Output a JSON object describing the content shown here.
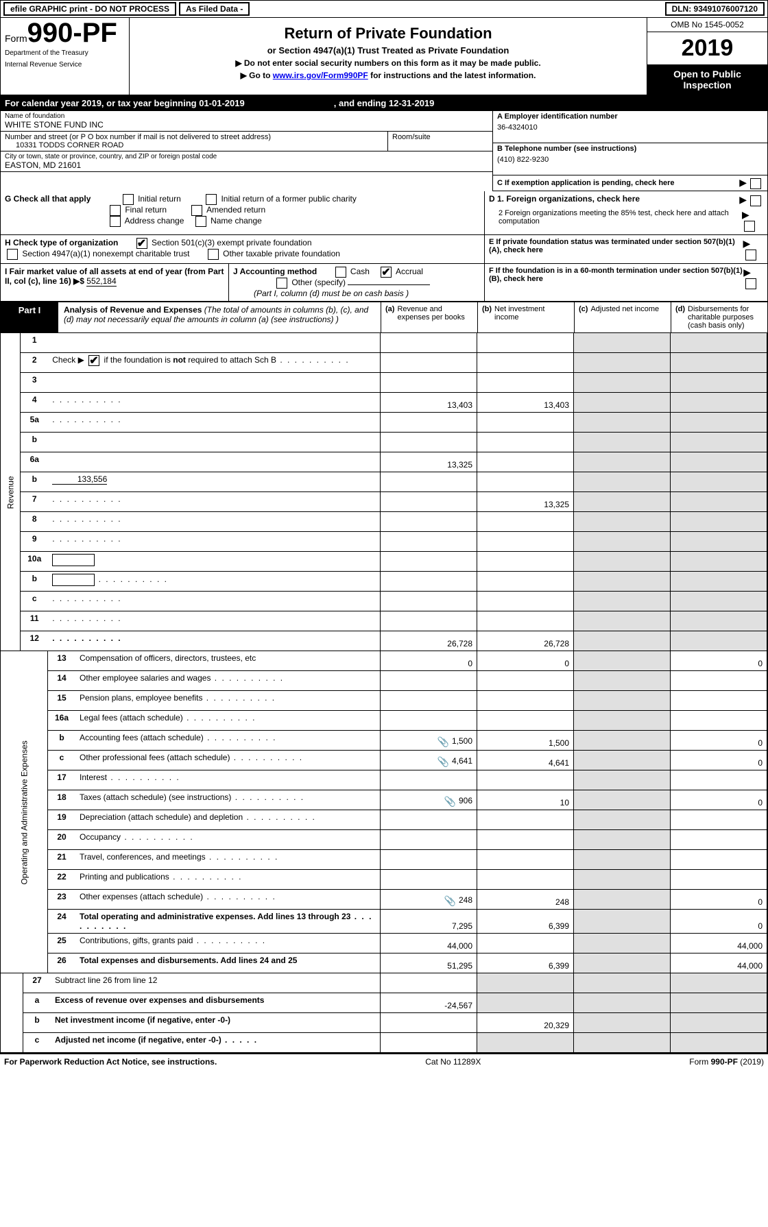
{
  "top_bar": {
    "efile": "efile GRAPHIC print - DO NOT PROCESS",
    "asfiled": "As Filed Data -",
    "dln": "DLN: 93491076007120"
  },
  "form_number": {
    "prefix": "Form",
    "number": "990-PF",
    "dept": "Department of the Treasury",
    "irs": "Internal Revenue Service"
  },
  "title": {
    "main": "Return of Private Foundation",
    "subtitle": "or Section 4947(a)(1) Trust Treated as Private Foundation",
    "line1": "▶  Do not enter social security numbers on this form as it may be made public.",
    "line2_pre": "▶  Go to ",
    "line2_link": "www.irs.gov/Form990PF",
    "line2_post": " for instructions and the latest information."
  },
  "right_header": {
    "omb": "OMB No 1545-0052",
    "year": "2019",
    "open": "Open to Public Inspection"
  },
  "calendar": {
    "begin_text": "For calendar year 2019, or tax year beginning 01-01-2019",
    "end_text": ", and ending 12-31-2019"
  },
  "foundation": {
    "name_label": "Name of foundation",
    "name": "WHITE STONE FUND INC",
    "address_label": "Number and street (or P O  box number if mail is not delivered to street address)",
    "room_label": "Room/suite",
    "address": "10331 TODDS CORNER ROAD",
    "city_label": "City or town, state or province, country, and ZIP or foreign postal code",
    "city": "EASTON, MD  21601"
  },
  "ein": {
    "label": "A Employer identification number",
    "value": "36-4324010"
  },
  "phone": {
    "label": "B Telephone number (see instructions)",
    "value": "(410) 822-9230"
  },
  "c_label": "C If exemption application is pending, check here",
  "d_labels": {
    "d1": "D 1. Foreign organizations, check here",
    "d2": "2 Foreign organizations meeting the 85% test, check here and attach computation"
  },
  "e_label": "E   If private foundation status was terminated under section 507(b)(1)(A), check here",
  "f_label": "F   If the foundation is in a 60-month termination under section 507(b)(1)(B), check here",
  "g": {
    "label": "G Check all that apply",
    "opts": [
      "Initial return",
      "Initial return of a former public charity",
      "Final return",
      "Amended return",
      "Address change",
      "Name change"
    ]
  },
  "h": {
    "label": "H Check type of organization",
    "opt1": "Section 501(c)(3) exempt private foundation",
    "opt2": "Section 4947(a)(1) nonexempt charitable trust",
    "opt3": "Other taxable private foundation"
  },
  "i": {
    "label": "I Fair market value of all assets at end of year (from Part II, col  (c), line 16) ▶$",
    "value": "552,184"
  },
  "j": {
    "label": "J Accounting method",
    "cash": "Cash",
    "accrual": "Accrual",
    "other": "Other (specify)",
    "note": "(Part I, column (d) must be on cash basis )"
  },
  "part1": {
    "label": "Part I",
    "title": "Analysis of Revenue and Expenses",
    "desc": "(The total of amounts in columns (b), (c), and (d) may not necessarily equal the amounts in column (a) (see instructions) )",
    "col_a": "Revenue and expenses per books",
    "col_b": "Net investment income",
    "col_c": "Adjusted net income",
    "col_d": "Disbursements for charitable purposes (cash basis only)"
  },
  "revenue_label": "Revenue",
  "expenses_label": "Operating and Administrative Expenses",
  "rows": [
    {
      "n": "1",
      "d": "",
      "a": "",
      "b": "",
      "c": ""
    },
    {
      "n": "2",
      "d": "",
      "a": "",
      "b": "",
      "c": "",
      "dots": true
    },
    {
      "n": "3",
      "d": "",
      "a": "",
      "b": "",
      "c": ""
    },
    {
      "n": "4",
      "d": "",
      "a": "13,403",
      "b": "13,403",
      "c": "",
      "dots": true
    },
    {
      "n": "5a",
      "d": "",
      "a": "",
      "b": "",
      "c": "",
      "dots": true
    },
    {
      "n": "b",
      "d": "",
      "a": "",
      "b": "",
      "c": "",
      "inline": true
    },
    {
      "n": "6a",
      "d": "",
      "a": "13,325",
      "b": "",
      "c": ""
    },
    {
      "n": "b",
      "d": "",
      "inline_val": "133,556",
      "a": "",
      "b": "",
      "c": ""
    },
    {
      "n": "7",
      "d": "",
      "a": "",
      "b": "13,325",
      "c": "",
      "dots": true
    },
    {
      "n": "8",
      "d": "",
      "a": "",
      "b": "",
      "c": "",
      "dots": true
    },
    {
      "n": "9",
      "d": "",
      "a": "",
      "b": "",
      "c": "",
      "dots": true
    },
    {
      "n": "10a",
      "d": "",
      "a": "",
      "b": "",
      "c": "",
      "box": true
    },
    {
      "n": "b",
      "d": "",
      "a": "",
      "b": "",
      "c": "",
      "box": true,
      "dots": true
    },
    {
      "n": "c",
      "d": "",
      "a": "",
      "b": "",
      "c": "",
      "dots": true
    },
    {
      "n": "11",
      "d": "",
      "a": "",
      "b": "",
      "c": "",
      "dots": true
    },
    {
      "n": "12",
      "d": "",
      "a": "26,728",
      "b": "26,728",
      "c": "",
      "bold": true,
      "dots": true
    }
  ],
  "exp_rows": [
    {
      "n": "13",
      "d": "Compensation of officers, directors, trustees, etc",
      "a": "0",
      "b": "0",
      "c": "",
      "dd": "0"
    },
    {
      "n": "14",
      "d": "Other employee salaries and wages",
      "a": "",
      "b": "",
      "c": "",
      "dd": "",
      "dots": true
    },
    {
      "n": "15",
      "d": "Pension plans, employee benefits",
      "a": "",
      "b": "",
      "c": "",
      "dd": "",
      "dots": true
    },
    {
      "n": "16a",
      "d": "Legal fees (attach schedule)",
      "a": "",
      "b": "",
      "c": "",
      "dd": "",
      "dots": true
    },
    {
      "n": "b",
      "d": "Accounting fees (attach schedule)",
      "a": "1,500",
      "b": "1,500",
      "c": "",
      "dd": "0",
      "dots": true,
      "icon": true
    },
    {
      "n": "c",
      "d": "Other professional fees (attach schedule)",
      "a": "4,641",
      "b": "4,641",
      "c": "",
      "dd": "0",
      "dots": true,
      "icon": true
    },
    {
      "n": "17",
      "d": "Interest",
      "a": "",
      "b": "",
      "c": "",
      "dd": "",
      "dots": true
    },
    {
      "n": "18",
      "d": "Taxes (attach schedule) (see instructions)",
      "a": "906",
      "b": "10",
      "c": "",
      "dd": "0",
      "dots": true,
      "icon": true
    },
    {
      "n": "19",
      "d": "Depreciation (attach schedule) and depletion",
      "a": "",
      "b": "",
      "c": "",
      "dd": "",
      "dots": true
    },
    {
      "n": "20",
      "d": "Occupancy",
      "a": "",
      "b": "",
      "c": "",
      "dd": "",
      "dots": true
    },
    {
      "n": "21",
      "d": "Travel, conferences, and meetings",
      "a": "",
      "b": "",
      "c": "",
      "dd": "",
      "dots": true
    },
    {
      "n": "22",
      "d": "Printing and publications",
      "a": "",
      "b": "",
      "c": "",
      "dd": "",
      "dots": true
    },
    {
      "n": "23",
      "d": "Other expenses (attach schedule)",
      "a": "248",
      "b": "248",
      "c": "",
      "dd": "0",
      "dots": true,
      "icon": true
    },
    {
      "n": "24",
      "d": "Total operating and administrative expenses. Add lines 13 through 23",
      "a": "7,295",
      "b": "6,399",
      "c": "",
      "dd": "0",
      "bold": true,
      "dots": true
    },
    {
      "n": "25",
      "d": "Contributions, gifts, grants paid",
      "a": "44,000",
      "b": "",
      "c": "",
      "dd": "44,000",
      "dots": true
    },
    {
      "n": "26",
      "d": "Total expenses and disbursements. Add lines 24 and 25",
      "a": "51,295",
      "b": "6,399",
      "c": "",
      "dd": "44,000",
      "bold": true
    }
  ],
  "bottom_rows": [
    {
      "n": "27",
      "d": "Subtract line 26 from line 12",
      "a": "",
      "b": "",
      "c": "",
      "dd": ""
    },
    {
      "n": "a",
      "d": "Excess of revenue over expenses and disbursements",
      "a": "-24,567",
      "b": "",
      "c": "",
      "dd": "",
      "bold": true
    },
    {
      "n": "b",
      "d": "Net investment income (if negative, enter -0-)",
      "a": "",
      "b": "20,329",
      "c": "",
      "dd": "",
      "bold": true
    },
    {
      "n": "c",
      "d": "Adjusted net income (if negative, enter -0-)",
      "a": "",
      "b": "",
      "c": "",
      "dd": "",
      "bold": true,
      "dots": true
    }
  ],
  "footer": {
    "left": "For Paperwork Reduction Act Notice, see instructions.",
    "center": "Cat  No  11289X",
    "right": "Form 990-PF (2019)"
  }
}
